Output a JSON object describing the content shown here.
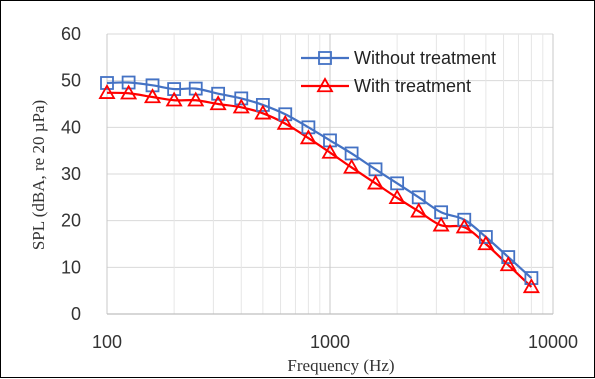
{
  "chart_data": {
    "type": "line",
    "xlabel": "Frequency (Hz)",
    "ylabel": "SPL (dBA, re 20 µPa)",
    "xscale": "log",
    "xlim": [
      100,
      10000
    ],
    "ylim": [
      0,
      60
    ],
    "x_ticks": [
      "100",
      "1000",
      "10000"
    ],
    "y_ticks": [
      "0",
      "10",
      "20",
      "30",
      "40",
      "50",
      "60"
    ],
    "grid": true,
    "legend_position": "top-right",
    "x": [
      100,
      125,
      160,
      200,
      250,
      315,
      400,
      500,
      630,
      800,
      1000,
      1250,
      1600,
      2000,
      2500,
      3150,
      4000,
      5000,
      6300,
      8000
    ],
    "series": [
      {
        "name": "Without treatment",
        "marker": "square",
        "color": "#4472C4",
        "values": [
          49.5,
          49.6,
          49.0,
          48.2,
          48.3,
          47.2,
          46.2,
          44.8,
          42.8,
          40.0,
          37.2,
          34.4,
          31.0,
          28.0,
          25.0,
          21.8,
          20.2,
          16.5,
          12.2,
          7.7
        ]
      },
      {
        "name": "With treatment",
        "marker": "triangle",
        "color": "#FF0000",
        "values": [
          47.4,
          47.3,
          46.5,
          45.8,
          45.8,
          45.0,
          44.3,
          43.0,
          40.8,
          37.7,
          34.6,
          31.4,
          28.0,
          24.9,
          22.0,
          19.0,
          18.6,
          15.0,
          10.5,
          5.8
        ]
      }
    ]
  }
}
